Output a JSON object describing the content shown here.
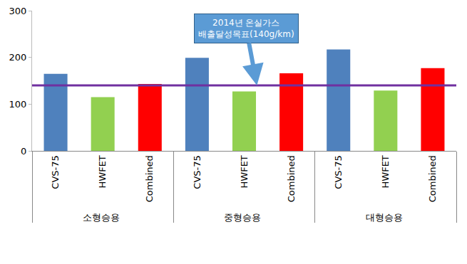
{
  "chart_data": {
    "type": "bar",
    "categories": [
      "소형승용",
      "중형승용",
      "대형승용"
    ],
    "series": [
      {
        "name": "CVS-75",
        "color": "#4f81bd",
        "values": [
          165,
          199,
          217
        ]
      },
      {
        "name": "HWFET",
        "color": "#92d050",
        "values": [
          115,
          127,
          129
        ]
      },
      {
        "name": "Combined",
        "color": "#ff0000",
        "values": [
          143,
          166,
          177
        ]
      }
    ],
    "target": {
      "value": 140,
      "color": "#7030a0",
      "label": [
        "2014년 온실가스",
        "배출달성목표(140g/km)"
      ]
    },
    "ylim": [
      0,
      300
    ],
    "yticks": [
      0,
      100,
      200,
      300
    ],
    "grid": false
  }
}
